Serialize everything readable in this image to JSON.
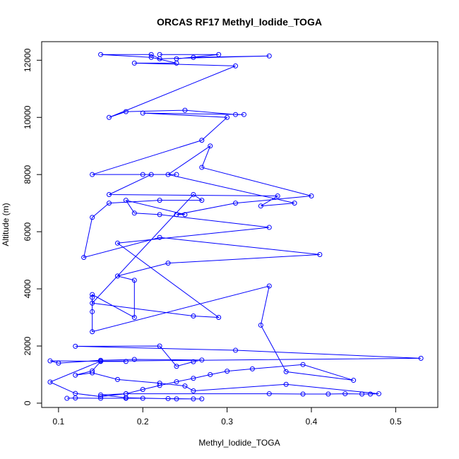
{
  "chart_data": {
    "type": "line",
    "title": "ORCAS RF17 Methyl_Iodide_TOGA",
    "xlabel": "Methyl_Iodide_TOGA",
    "ylabel": "Altitude (m)",
    "xlim": [
      0.08,
      0.55
    ],
    "ylim": [
      -150,
      12650
    ],
    "x_ticks": [
      0.1,
      0.2,
      0.3,
      0.4,
      0.5
    ],
    "x_tick_labels": [
      "0.1",
      "0.2",
      "0.3",
      "0.4",
      "0.5"
    ],
    "y_ticks": [
      0,
      2000,
      4000,
      6000,
      8000,
      10000,
      12000
    ],
    "y_tick_labels": [
      "0",
      "2000",
      "4000",
      "6000",
      "8000",
      "10000",
      "12000"
    ],
    "grid": false,
    "legend": "none",
    "markers": "open-circle",
    "series": [
      {
        "color": "#0000ff",
        "x": [
          0.11,
          0.12,
          0.15,
          0.18,
          0.2,
          0.23,
          0.26,
          0.27,
          0.24,
          0.18,
          0.15,
          0.18,
          0.35,
          0.39,
          0.42,
          0.44,
          0.46,
          0.47,
          0.48,
          0.37,
          0.26,
          0.25,
          0.22,
          0.17,
          0.14,
          0.12,
          0.14,
          0.15,
          0.18,
          0.09,
          0.1,
          0.15,
          0.19,
          0.27,
          0.26,
          0.24,
          0.22,
          0.12,
          0.31,
          0.53,
          0.15,
          0.09,
          0.12,
          0.15,
          0.18,
          0.2,
          0.22,
          0.24,
          0.26,
          0.28,
          0.3,
          0.33,
          0.39,
          0.45,
          0.37,
          0.34,
          0.35,
          0.14,
          0.14,
          0.14,
          0.14,
          0.19,
          0.19,
          0.17,
          0.23,
          0.41,
          0.22,
          0.13,
          0.14,
          0.16,
          0.22,
          0.27,
          0.26,
          0.14,
          0.26,
          0.29,
          0.17,
          0.35,
          0.22,
          0.19,
          0.18,
          0.25,
          0.24,
          0.31,
          0.4,
          0.27,
          0.28,
          0.23,
          0.38,
          0.34,
          0.36,
          0.16,
          0.21,
          0.24,
          0.2,
          0.14,
          0.27,
          0.3,
          0.2,
          0.32,
          0.31,
          0.25,
          0.18,
          0.16,
          0.31,
          0.19,
          0.24,
          0.21,
          0.15,
          0.21,
          0.22,
          0.35,
          0.26,
          0.24,
          0.29,
          0.22
        ],
        "y": [
          170,
          180,
          170,
          170,
          170,
          160,
          150,
          150,
          150,
          190,
          290,
          330,
          330,
          320,
          320,
          330,
          320,
          320,
          330,
          660,
          430,
          600,
          700,
          830,
          1060,
          980,
          1130,
          1460,
          1460,
          1480,
          1400,
          1500,
          1530,
          1510,
          1450,
          1290,
          2000,
          1990,
          1850,
          1570,
          1470,
          740,
          340,
          230,
          330,
          480,
          620,
          750,
          870,
          1000,
          1120,
          1200,
          1350,
          800,
          1100,
          2730,
          4100,
          2500,
          3200,
          3700,
          3800,
          3000,
          4300,
          4450,
          4900,
          5200,
          5800,
          5100,
          6500,
          7000,
          7100,
          7100,
          7300,
          3500,
          3050,
          3000,
          5600,
          6150,
          6600,
          6650,
          7100,
          6600,
          6600,
          7000,
          7250,
          8250,
          9000,
          8000,
          7000,
          6900,
          7250,
          7300,
          8000,
          8000,
          8000,
          8000,
          9200,
          10000,
          10150,
          10100,
          10100,
          10250,
          10200,
          10000,
          11800,
          11900,
          11900,
          12100,
          12200,
          12200,
          12050,
          12150,
          12100,
          12050,
          12200,
          12200
        ]
      }
    ]
  }
}
